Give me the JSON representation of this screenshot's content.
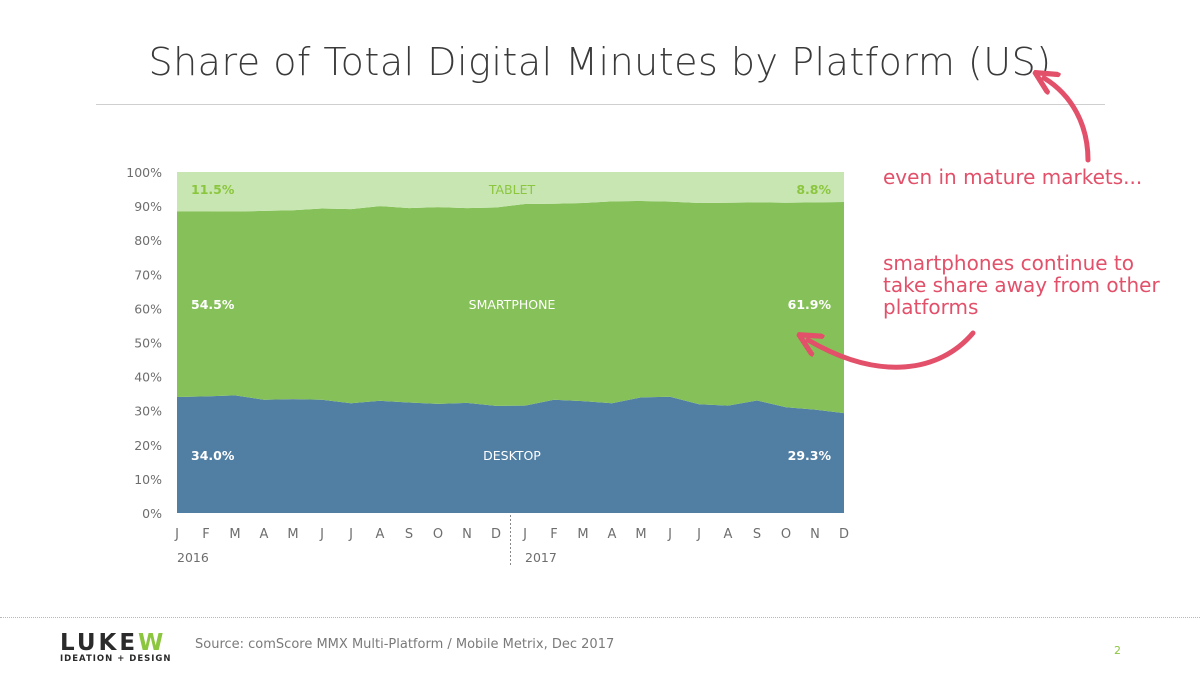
{
  "colors": {
    "desktop": "#517fa4",
    "smartphone": "#85c158",
    "tablet": "#c7e6b1",
    "annotation": "#e2506a",
    "axis_text": "#6e6e6e",
    "accent_green": "#8cc63f"
  },
  "annotations": {
    "mature_markets": "even in mature markets...",
    "smartphones_continue": "smartphones continue to take share away from other platforms"
  },
  "footer": {
    "logo_left": "LUKE",
    "logo_right": "W",
    "logo_tagline": "IDEATION + DESIGN",
    "source": "Source: comScore MMX Multi-Platform / Mobile Metrix, Dec 2017",
    "page_number": "2"
  },
  "chart_data": {
    "type": "area",
    "stacked": true,
    "title": "Share of Total Digital Minutes by Platform (US)",
    "categories": [
      "J",
      "F",
      "M",
      "A",
      "M",
      "J",
      "J",
      "A",
      "S",
      "O",
      "N",
      "D",
      "J",
      "F",
      "M",
      "A",
      "M",
      "J",
      "J",
      "A",
      "S",
      "O",
      "N",
      "D"
    ],
    "years": [
      {
        "label": "2016",
        "start_index": 0
      },
      {
        "label": "2017",
        "start_index": 12
      }
    ],
    "y_ticks": [
      "0%",
      "10%",
      "20%",
      "30%",
      "40%",
      "50%",
      "60%",
      "70%",
      "80%",
      "90%",
      "100%"
    ],
    "ylim": [
      0,
      100
    ],
    "grid": false,
    "series": [
      {
        "name": "DESKTOP",
        "color": "#517fa4",
        "label_color": "#ffffff",
        "values": [
          34.0,
          34.2,
          34.5,
          33.2,
          33.4,
          33.2,
          32.2,
          32.9,
          32.4,
          32.0,
          32.3,
          31.4,
          31.5,
          33.2,
          32.8,
          32.2,
          33.9,
          34.1,
          31.9,
          31.5,
          33.0,
          31.0,
          30.3,
          29.3
        ],
        "start_label": "34.0%",
        "end_label": "29.3%"
      },
      {
        "name": "SMARTPHONE",
        "color": "#85c158",
        "label_color": "#ffffff",
        "values": [
          54.5,
          54.3,
          53.9,
          55.4,
          55.4,
          56.1,
          56.9,
          57.1,
          57.0,
          57.7,
          57.1,
          58.2,
          59.1,
          57.5,
          58.1,
          59.2,
          57.6,
          57.2,
          59.0,
          59.5,
          58.1,
          60.0,
          60.8,
          61.9
        ],
        "start_label": "54.5%",
        "end_label": "61.9%"
      },
      {
        "name": "TABLET",
        "color": "#c7e6b1",
        "label_color": "#8cc63f",
        "values": [
          11.5,
          11.5,
          11.6,
          11.4,
          11.2,
          10.7,
          10.9,
          10.0,
          10.6,
          10.3,
          10.6,
          10.4,
          9.4,
          9.3,
          9.1,
          8.6,
          8.5,
          8.7,
          9.1,
          9.0,
          8.9,
          9.0,
          8.9,
          8.8
        ],
        "start_label": "11.5%",
        "end_label": "8.8%"
      }
    ]
  }
}
